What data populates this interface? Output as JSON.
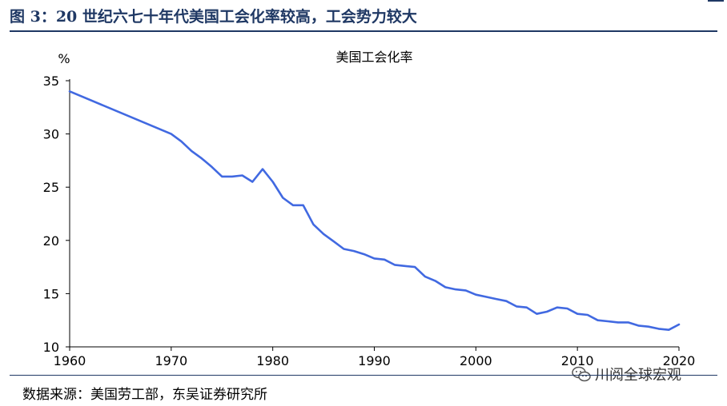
{
  "figure": {
    "title": "图 3：20 世纪六七十年代美国工会化率较高，工会势力较大",
    "source": "数据来源：美国劳工部，东吴证券研究所",
    "watermark": "川阅全球宏观",
    "watermark_icon": "wechat-icon"
  },
  "chart_data": {
    "type": "line",
    "title": "美国工会化率",
    "ylabel": "%",
    "xlabel": "",
    "xlim": [
      1960,
      2020
    ],
    "ylim": [
      10,
      35
    ],
    "x_ticks": [
      1960,
      1970,
      1980,
      1990,
      2000,
      2010,
      2020
    ],
    "y_ticks": [
      10,
      15,
      20,
      25,
      30,
      35
    ],
    "grid": false,
    "legend": "none",
    "line_color": "#4169e1",
    "series": [
      {
        "name": "",
        "x": [
          1960,
          1970,
          1971,
          1972,
          1973,
          1974,
          1975,
          1976,
          1977,
          1978,
          1979,
          1980,
          1981,
          1982,
          1983,
          1984,
          1985,
          1986,
          1987,
          1988,
          1989,
          1990,
          1991,
          1992,
          1993,
          1994,
          1995,
          1996,
          1997,
          1998,
          1999,
          2000,
          2001,
          2002,
          2003,
          2004,
          2005,
          2006,
          2007,
          2008,
          2009,
          2010,
          2011,
          2012,
          2013,
          2014,
          2015,
          2016,
          2017,
          2018,
          2019,
          2020
        ],
        "y": [
          34.0,
          30.0,
          29.3,
          28.4,
          27.7,
          26.9,
          26.0,
          26.0,
          26.1,
          25.5,
          26.7,
          25.5,
          24.0,
          23.3,
          23.3,
          21.5,
          20.6,
          19.9,
          19.2,
          19.0,
          18.7,
          18.3,
          18.2,
          17.7,
          17.6,
          17.5,
          16.6,
          16.2,
          15.6,
          15.4,
          15.3,
          14.9,
          14.7,
          14.5,
          14.3,
          13.8,
          13.7,
          13.1,
          13.3,
          13.7,
          13.6,
          13.1,
          13.0,
          12.5,
          12.4,
          12.3,
          12.3,
          12.0,
          11.9,
          11.7,
          11.6,
          12.1
        ]
      }
    ]
  }
}
